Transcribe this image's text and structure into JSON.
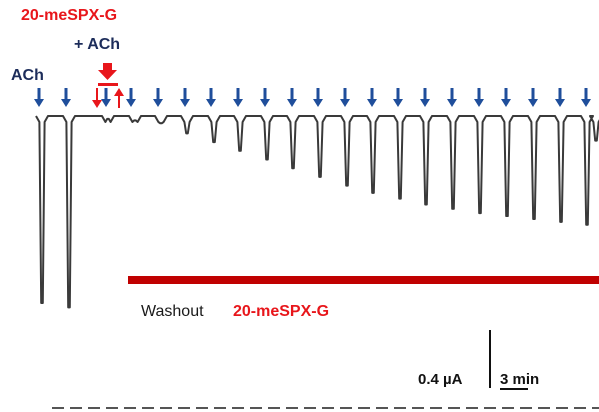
{
  "chart_data": {
    "type": "line",
    "title": "",
    "xlabel": "",
    "ylabel": "",
    "labels": {
      "ach": "ACh",
      "toxin_line1": "20-meSPX-G",
      "toxin_line2": "+ ACh",
      "washout_text": "Washout",
      "washout_toxin": "20-meSPX-G",
      "scale_current": "0.4 µA",
      "scale_time": "3 min"
    },
    "scale_bars": {
      "current_uA": 0.4,
      "time_min": 3
    },
    "series": [
      {
        "values": [
          -1.29,
          -1.32,
          -0.02,
          -0.03,
          -0.05,
          -0.12,
          -0.18,
          -0.24,
          -0.3,
          -0.36,
          -0.42,
          -0.48,
          -0.53,
          -0.57,
          -0.61,
          -0.64,
          -0.67,
          -0.69,
          -0.71,
          -0.73,
          -0.75,
          -0.17
        ]
      }
    ],
    "ylim": [
      -1.35,
      0
    ],
    "colors": {
      "trace": "#3a3a3a",
      "ach_arrow": "#1f4e9b",
      "toxin": "#e8161b",
      "washout_bar": "#c00000",
      "navy": "#1c2c5a",
      "baseline": "#555555"
    }
  }
}
